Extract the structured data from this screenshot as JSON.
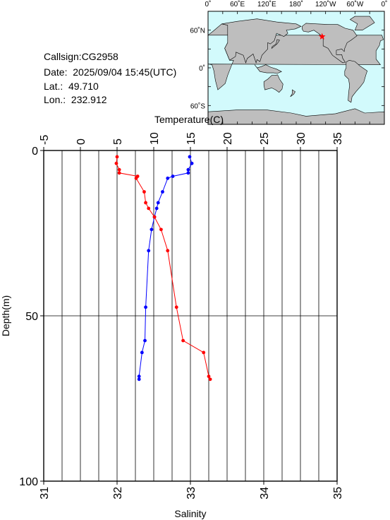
{
  "header": {
    "callsign": "Callsign:CG2958",
    "date": "Date:  2025/09/04 15:45(UTC)",
    "lat": "Lat.:  49.710",
    "lon": "Lon.:  232.912"
  },
  "map": {
    "lon_ticks": [
      "0˚",
      "60˚E",
      "120˚E",
      "180˚",
      "120˚W",
      "60˚W",
      "0˚"
    ],
    "lat_ticks": [
      "60˚N",
      "0˚",
      "60˚S"
    ],
    "station_lon": 232.912,
    "station_lat": 49.71,
    "ocean_color": "#d2fafc",
    "land_color": "#bebebe",
    "marker_color": "#ff0000"
  },
  "chart_data": {
    "type": "line",
    "title": "",
    "top_axis": {
      "label": "Temperature(C)",
      "range": [
        -5,
        35
      ],
      "tick_labels": [
        "-5",
        "0",
        "5",
        "10",
        "15",
        "20",
        "25",
        "30",
        "35"
      ]
    },
    "bottom_axis": {
      "label": "Salinity",
      "range": [
        31,
        35
      ],
      "tick_labels": [
        "31",
        "32",
        "33",
        "34",
        "35"
      ]
    },
    "left_axis": {
      "label": "Depth(m)",
      "range": [
        0,
        100
      ],
      "inverted": true,
      "tick_labels": [
        "0",
        "50",
        "100"
      ]
    },
    "grid": true,
    "series": [
      {
        "axis": "temperature",
        "color": "#0000ff",
        "points": [
          {
            "x": 14.9,
            "depth": 1.9
          },
          {
            "x": 15.2,
            "depth": 3.9
          },
          {
            "x": 14.7,
            "depth": 5.8
          },
          {
            "x": 14.7,
            "depth": 6.8
          },
          {
            "x": 12.6,
            "depth": 7.8
          },
          {
            "x": 11.9,
            "depth": 8.4
          },
          {
            "x": 11.2,
            "depth": 12.5
          },
          {
            "x": 10.6,
            "depth": 15.8
          },
          {
            "x": 10.4,
            "depth": 17.5
          },
          {
            "x": 10.1,
            "depth": 20.1
          },
          {
            "x": 9.7,
            "depth": 23.9
          },
          {
            "x": 9.3,
            "depth": 30.3
          },
          {
            "x": 8.9,
            "depth": 47.4
          },
          {
            "x": 8.8,
            "depth": 57.5
          },
          {
            "x": 8.4,
            "depth": 61.1
          },
          {
            "x": 8.0,
            "depth": 68.3
          },
          {
            "x": 8.0,
            "depth": 69.2
          }
        ]
      },
      {
        "axis": "salinity",
        "color": "#ff0000",
        "points": [
          {
            "x": 32.0,
            "depth": 1.9
          },
          {
            "x": 31.99,
            "depth": 3.9
          },
          {
            "x": 32.03,
            "depth": 5.8
          },
          {
            "x": 32.03,
            "depth": 6.8
          },
          {
            "x": 32.28,
            "depth": 7.8
          },
          {
            "x": 32.26,
            "depth": 8.4
          },
          {
            "x": 32.37,
            "depth": 12.5
          },
          {
            "x": 32.39,
            "depth": 15.8
          },
          {
            "x": 32.43,
            "depth": 17.5
          },
          {
            "x": 32.51,
            "depth": 20.1
          },
          {
            "x": 32.6,
            "depth": 23.9
          },
          {
            "x": 32.69,
            "depth": 30.3
          },
          {
            "x": 32.81,
            "depth": 47.4
          },
          {
            "x": 32.9,
            "depth": 57.5
          },
          {
            "x": 33.18,
            "depth": 61.1
          },
          {
            "x": 33.25,
            "depth": 68.3
          },
          {
            "x": 33.27,
            "depth": 69.2
          }
        ]
      }
    ]
  }
}
